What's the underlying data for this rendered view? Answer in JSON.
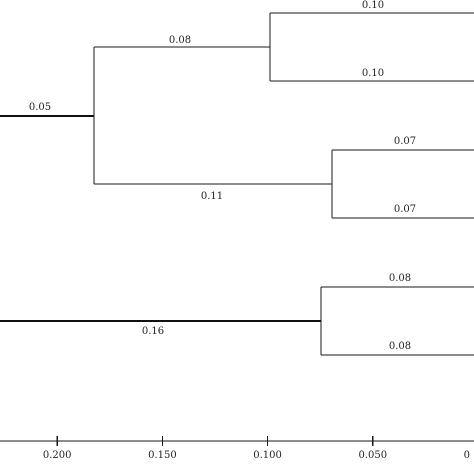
{
  "chart_data": {
    "type": "dendrogram",
    "x_axis": {
      "reversed": true,
      "ticks": [
        0.2,
        0.15,
        0.1,
        0.05,
        0.0
      ],
      "tick_labels": [
        "0.200",
        "0.150",
        "0.100",
        "0.050",
        "0"
      ]
    },
    "branch_length_labels": [
      {
        "id": "b1",
        "label": "0.10",
        "value": 0.1
      },
      {
        "id": "b2",
        "label": "0.10",
        "value": 0.1
      },
      {
        "id": "b3",
        "label": "0.08",
        "value": 0.08
      },
      {
        "id": "b4",
        "label": "0.07",
        "value": 0.07
      },
      {
        "id": "b5",
        "label": "0.07",
        "value": 0.07
      },
      {
        "id": "b6",
        "label": "0.11",
        "value": 0.11
      },
      {
        "id": "b7",
        "label": "0.05",
        "value": 0.05
      },
      {
        "id": "b8",
        "label": "0.08",
        "value": 0.08
      },
      {
        "id": "b9",
        "label": "0.08",
        "value": 0.08
      },
      {
        "id": "b10",
        "label": "0.16",
        "value": 0.16
      }
    ]
  }
}
